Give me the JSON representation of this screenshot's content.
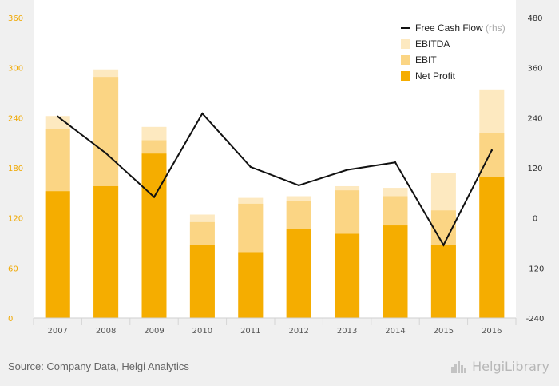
{
  "colors": {
    "background": "#f0f0f0",
    "plot_background": "#ffffff",
    "net_profit": "#f5ad00",
    "ebit": "#fbd584",
    "ebitda": "#fde9c0",
    "free_cash_flow": "#111111",
    "axis_left_labels": "#f0a800",
    "axis_right_labels": "#333333"
  },
  "chart_data": {
    "type": "bar",
    "categories": [
      "2007",
      "2008",
      "2009",
      "2010",
      "2011",
      "2012",
      "2013",
      "2014",
      "2015",
      "2016"
    ],
    "stacked_cumulative": true,
    "series": [
      {
        "name": "Net Profit",
        "type": "bar",
        "axis": "left",
        "values": [
          152,
          158,
          197,
          88,
          79,
          107,
          101,
          111,
          88,
          169
        ]
      },
      {
        "name": "EBIT",
        "type": "bar",
        "axis": "left",
        "values": [
          226,
          289,
          213,
          115,
          137,
          140,
          153,
          146,
          129,
          222
        ]
      },
      {
        "name": "EBITDA",
        "type": "bar",
        "axis": "left",
        "values": [
          242,
          298,
          229,
          124,
          144,
          146,
          158,
          156,
          174,
          274
        ]
      },
      {
        "name": "Free Cash Flow",
        "type": "line",
        "axis": "right",
        "values": [
          243,
          155,
          50,
          250,
          122,
          78,
          115,
          133,
          -65,
          162
        ]
      }
    ],
    "yaxis_left": {
      "min": 0,
      "max": 360,
      "ticks": [
        "0",
        "60",
        "120",
        "180",
        "240",
        "300",
        "360"
      ]
    },
    "yaxis_right": {
      "min": -240,
      "max": 480,
      "ticks": [
        "-240",
        "-120",
        "0",
        "120",
        "240",
        "360",
        "480"
      ]
    },
    "legend": {
      "placement": "top-right",
      "items": [
        {
          "label": "Free Cash Flow",
          "suffix": "(rhs)",
          "kind": "line"
        },
        {
          "label": "EBITDA",
          "kind": "box"
        },
        {
          "label": "EBIT",
          "kind": "box"
        },
        {
          "label": "Net Profit",
          "kind": "box"
        }
      ]
    },
    "grid": false
  },
  "footer": {
    "source": "Source: Company Data, Helgi Analytics",
    "logo_text": "HelgiLibrary",
    "logo_icon": "city-skyline-icon"
  }
}
